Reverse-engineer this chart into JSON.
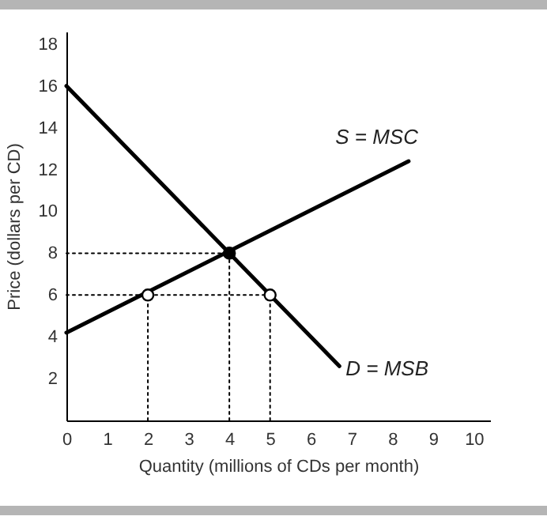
{
  "chart_data": {
    "type": "line",
    "xlabel": "Quantity (millions of CDs per month)",
    "ylabel": "Price (dollars per CD)",
    "xlim": [
      0,
      10.4
    ],
    "ylim": [
      0,
      18.6
    ],
    "xticks": [
      0,
      1,
      2,
      3,
      4,
      5,
      6,
      7,
      8,
      9,
      10
    ],
    "yticks": [
      2,
      4,
      6,
      8,
      10,
      12,
      14,
      16,
      18
    ],
    "grid": false,
    "series": [
      {
        "name": "D = MSB",
        "color": "#000000",
        "x": [
          0,
          6.7
        ],
        "values": [
          16,
          2.6
        ],
        "line_style": "solid"
      },
      {
        "name": "S = MSC",
        "color": "#000000",
        "x": [
          0,
          8.4
        ],
        "values": [
          4.2,
          12.4
        ],
        "line_style": "solid"
      },
      {
        "color": "#000000",
        "x": [
          0,
          4
        ],
        "values": [
          8,
          8
        ],
        "line_style": "dotted"
      },
      {
        "color": "#000000",
        "x": [
          4,
          4
        ],
        "values": [
          0,
          8
        ],
        "line_style": "dotted"
      },
      {
        "color": "#000000",
        "x": [
          0,
          5
        ],
        "values": [
          6,
          6
        ],
        "line_style": "dotted"
      },
      {
        "color": "#000000",
        "x": [
          2,
          2
        ],
        "values": [
          0,
          6
        ],
        "line_style": "dotted"
      },
      {
        "color": "#000000",
        "x": [
          5,
          5
        ],
        "values": [
          0,
          6
        ],
        "line_style": "dotted"
      },
      {
        "type": "scatter",
        "color": "#000000",
        "x": [
          4
        ],
        "values": [
          8
        ],
        "marker": "circle"
      },
      {
        "type": "scatter",
        "color": "#ffffff",
        "x": [
          2,
          5
        ],
        "values": [
          6,
          6
        ],
        "marker": "circle"
      }
    ]
  }
}
